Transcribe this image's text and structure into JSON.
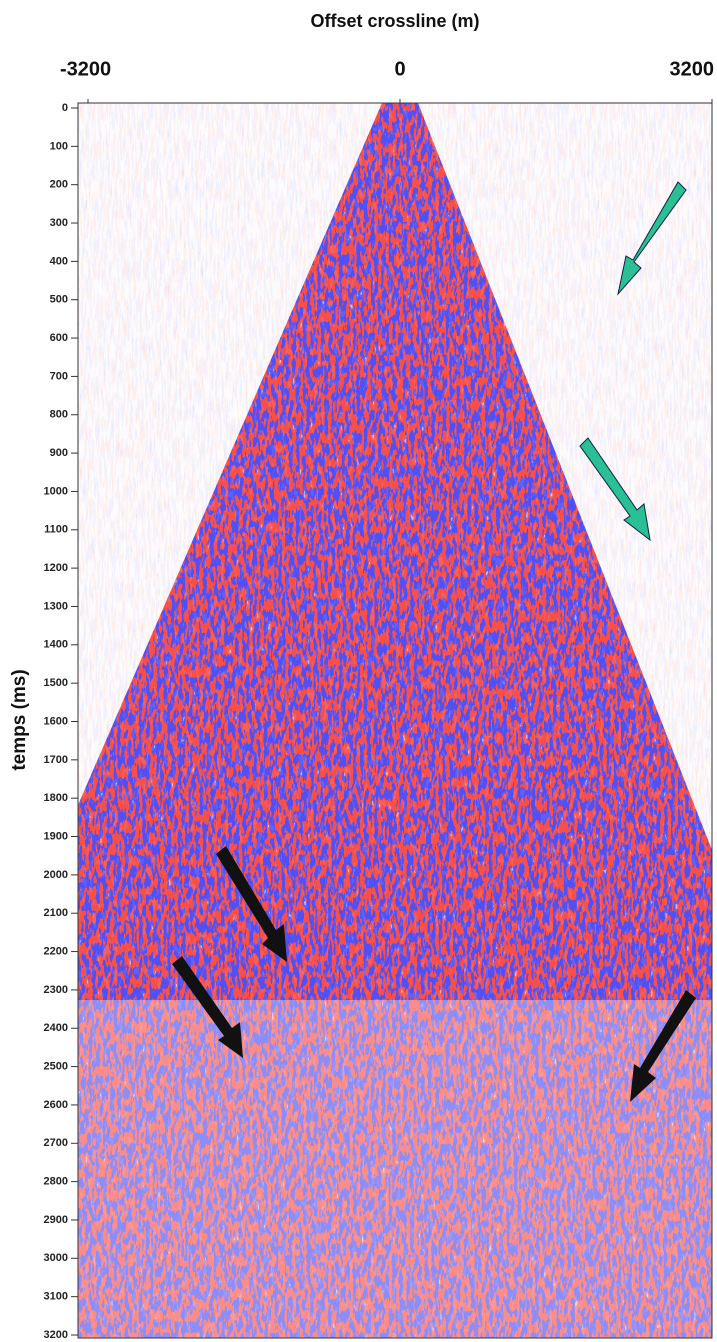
{
  "chart_data": {
    "type": "image",
    "x_label": "Offset crossline (m)",
    "y_label": "temps (ms)",
    "xlim": [
      -3200,
      3200
    ],
    "xticks": [
      -3200,
      0,
      3200
    ],
    "ylim": [
      3200,
      0
    ],
    "yticks": [
      0,
      100,
      200,
      300,
      400,
      500,
      600,
      700,
      800,
      900,
      1000,
      1100,
      1200,
      1300,
      1400,
      1500,
      1600,
      1700,
      1800,
      1900,
      2000,
      2100,
      2200,
      2300,
      2400,
      2500,
      2600,
      2700,
      2800,
      2900,
      3000,
      3100,
      3200
    ]
  }
}
